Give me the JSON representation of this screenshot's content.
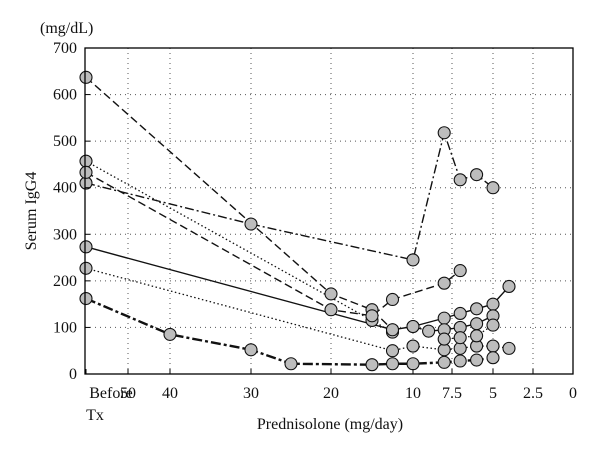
{
  "chart_data": {
    "type": "line",
    "unit_label": "(mg/dL)",
    "xlabel": "Prednisolone (mg/day)",
    "ylabel": "Serum IgG4",
    "ylim": [
      0,
      700
    ],
    "yticks": [
      0,
      100,
      200,
      300,
      400,
      500,
      600,
      700
    ],
    "x_categories": [
      {
        "label_lines": [
          "Before",
          "Tx"
        ]
      },
      {
        "label_lines": [
          "50"
        ]
      },
      {
        "label_lines": [
          "40"
        ]
      },
      {
        "label_lines": [
          "30"
        ]
      },
      {
        "label_lines": [
          "20"
        ]
      },
      {
        "label_lines": [
          "10"
        ]
      },
      {
        "label_lines": [
          "7.5"
        ]
      },
      {
        "label_lines": [
          "5"
        ]
      },
      {
        "label_lines": [
          "2.5"
        ]
      },
      {
        "label_lines": [
          "0"
        ]
      }
    ],
    "grid": "dotted",
    "series": [
      {
        "style": "dashed",
        "points": [
          {
            "x": "Before Tx",
            "y": 637
          },
          {
            "x": 20,
            "y": 172
          },
          {
            "x": 15,
            "y": 138
          },
          {
            "x": 12.5,
            "y": 95
          }
        ]
      },
      {
        "style": "dash-dot",
        "points": [
          {
            "x": "Before Tx",
            "y": 410
          },
          {
            "x": 30,
            "y": 322
          },
          {
            "x": 10,
            "y": 245
          },
          {
            "x": 8,
            "y": 518
          },
          {
            "x": 7,
            "y": 417
          },
          {
            "x": 6,
            "y": 428
          },
          {
            "x": 5,
            "y": 400
          }
        ]
      },
      {
        "style": "dotted",
        "points": [
          {
            "x": "Before Tx",
            "y": 457
          },
          {
            "x": 15,
            "y": 115
          },
          {
            "x": 12.5,
            "y": 90
          }
        ]
      },
      {
        "style": "dashed",
        "points": [
          {
            "x": "Before Tx",
            "y": 433
          },
          {
            "x": 20,
            "y": 138
          },
          {
            "x": 15,
            "y": 125
          },
          {
            "x": 12.5,
            "y": 160
          },
          {
            "x": 8,
            "y": 195
          },
          {
            "x": 7,
            "y": 222
          }
        ]
      },
      {
        "style": "solid",
        "points": [
          {
            "x": "Before Tx",
            "y": 273
          },
          {
            "x": 12.5,
            "y": 95
          },
          {
            "x": 10,
            "y": 102
          },
          {
            "x": 8,
            "y": 120
          },
          {
            "x": 7,
            "y": 130
          },
          {
            "x": 6,
            "y": 140
          },
          {
            "x": 5,
            "y": 150
          },
          {
            "x": 4,
            "y": 188
          }
        ]
      },
      {
        "style": "dotted",
        "points": [
          {
            "x": "Before Tx",
            "y": 227
          },
          {
            "x": 12.5,
            "y": 50
          },
          {
            "x": 10,
            "y": 60
          },
          {
            "x": 8,
            "y": 52
          },
          {
            "x": 7,
            "y": 55
          },
          {
            "x": 6,
            "y": 60
          },
          {
            "x": 5,
            "y": 60
          },
          {
            "x": 4,
            "y": 55
          }
        ]
      },
      {
        "style": "dash-dot-bold",
        "points": [
          {
            "x": "Before Tx",
            "y": 162
          },
          {
            "x": 40,
            "y": 85
          },
          {
            "x": 30,
            "y": 52
          },
          {
            "x": 25,
            "y": 22
          },
          {
            "x": 15,
            "y": 20
          },
          {
            "x": 12.5,
            "y": 22
          },
          {
            "x": 10,
            "y": 22
          },
          {
            "x": 8,
            "y": 25
          },
          {
            "x": 7,
            "y": 28
          },
          {
            "x": 6,
            "y": 30
          },
          {
            "x": 5,
            "y": 35
          }
        ]
      },
      {
        "style": "dash-dot",
        "points": [
          {
            "x": 10,
            "y": 102
          },
          {
            "x": 9,
            "y": 92
          },
          {
            "x": 8,
            "y": 95
          },
          {
            "x": 7,
            "y": 100
          },
          {
            "x": 6,
            "y": 108
          },
          {
            "x": 5,
            "y": 125
          }
        ]
      },
      {
        "style": "dotted",
        "points": [
          {
            "x": 8,
            "y": 75
          },
          {
            "x": 7,
            "y": 78
          },
          {
            "x": 6,
            "y": 82
          },
          {
            "x": 5,
            "y": 105
          }
        ]
      }
    ]
  }
}
